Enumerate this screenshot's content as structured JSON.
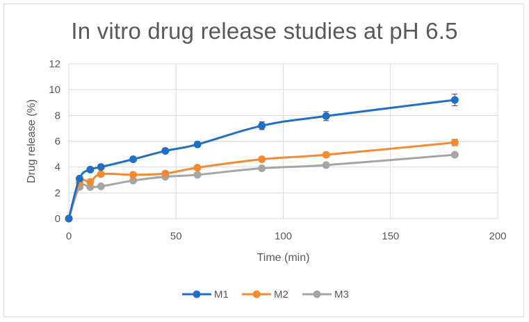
{
  "chart_data": {
    "type": "line",
    "title": "In vitro drug release studies at pH 6.5",
    "xlabel": "Time (min)",
    "ylabel": "Drug release (%)",
    "xlim": [
      0,
      200
    ],
    "ylim": [
      0,
      12
    ],
    "xticks": [
      "0",
      "50",
      "100",
      "150",
      "200"
    ],
    "yticks": [
      "0",
      "2",
      "4",
      "6",
      "8",
      "10",
      "12"
    ],
    "grid": true,
    "legend_position": "bottom",
    "x": [
      0,
      5,
      10,
      15,
      30,
      45,
      60,
      90,
      120,
      180
    ],
    "series": [
      {
        "name": "M1",
        "color": "#1f6fc5",
        "marker": "circle",
        "values": [
          0,
          3.1,
          3.8,
          4.0,
          4.6,
          5.25,
          5.75,
          7.2,
          7.95,
          9.2
        ],
        "errors": [
          0,
          0.12,
          0.12,
          0.12,
          0.15,
          0.18,
          0.2,
          0.3,
          0.35,
          0.45
        ]
      },
      {
        "name": "M2",
        "color": "#f58a33",
        "marker": "circle",
        "values": [
          0,
          2.8,
          2.85,
          3.45,
          3.4,
          3.5,
          3.95,
          4.6,
          4.95,
          5.9
        ],
        "errors": [
          0,
          0.1,
          0.1,
          0.1,
          0.1,
          0.12,
          0.12,
          0.15,
          0.15,
          0.25
        ]
      },
      {
        "name": "M3",
        "color": "#a5a5a5",
        "marker": "circle",
        "values": [
          0,
          2.45,
          2.45,
          2.5,
          2.95,
          3.25,
          3.4,
          3.9,
          4.15,
          4.95
        ],
        "errors": [
          0,
          0.1,
          0.1,
          0.1,
          0.1,
          0.1,
          0.1,
          0.12,
          0.12,
          0.15
        ]
      }
    ]
  }
}
